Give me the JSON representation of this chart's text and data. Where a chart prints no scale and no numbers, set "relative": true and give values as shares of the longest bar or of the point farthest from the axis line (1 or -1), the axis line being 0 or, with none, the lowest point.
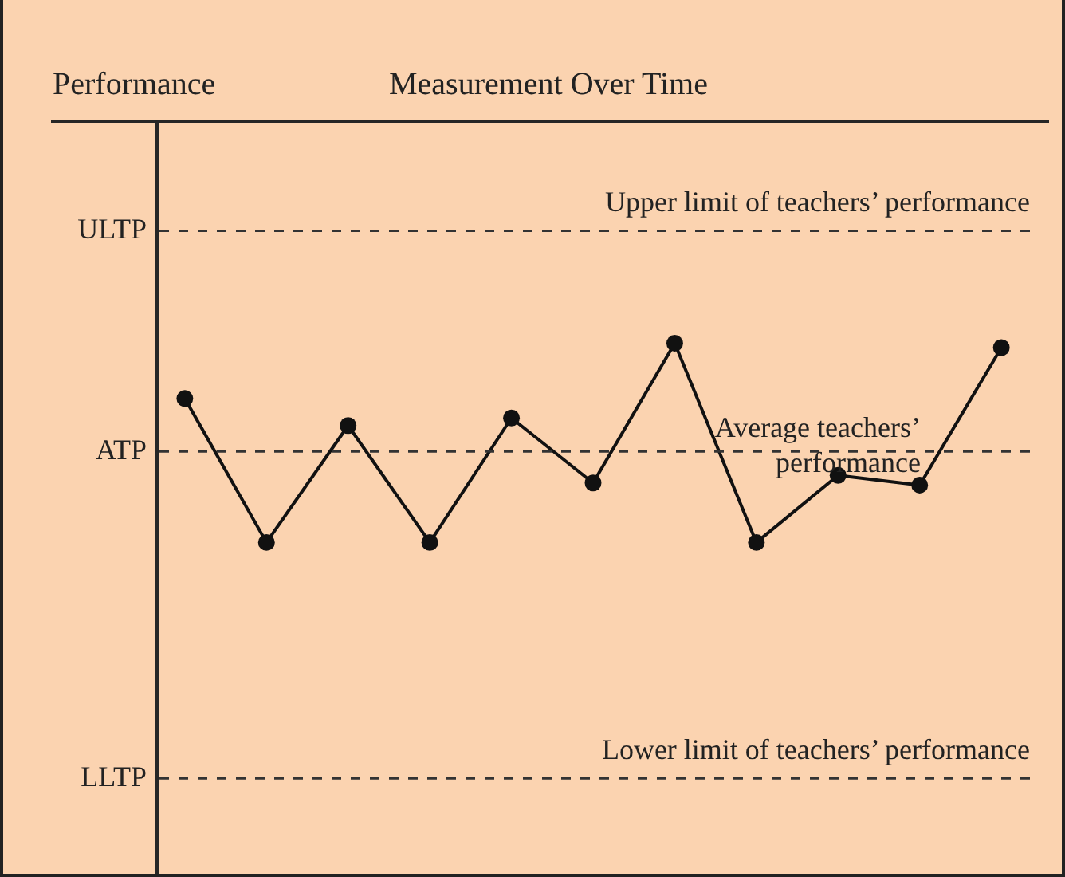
{
  "chart_data": {
    "type": "line",
    "relative": true,
    "categories": [
      null,
      null,
      null,
      null,
      null,
      null,
      null,
      null,
      null,
      null,
      null
    ],
    "series": [
      {
        "color": "#111111",
        "values": [
          0.49,
          -0.84,
          0.24,
          -0.84,
          0.31,
          -0.29,
          1,
          -0.84,
          -0.22,
          -0.31,
          0.96
        ]
      }
    ],
    "ref_lines": [
      {
        "axis": "y",
        "value": 2.04,
        "label": "Upper limit of teachers’ performance",
        "color": "#333333",
        "line_style": "dashed"
      },
      {
        "axis": "y",
        "value": 0,
        "label": "Average teachers’ performance",
        "color": "#333333",
        "line_style": "dashed"
      },
      {
        "axis": "y",
        "value": -3.02,
        "label": "Lower limit of teachers’ performance",
        "color": "#333333",
        "line_style": "dashed"
      }
    ],
    "annotations": [
      "Performance",
      "Measurement Over Time",
      "ULTP",
      "ATP",
      "LLTP"
    ],
    "marker": "circle",
    "line_style": "solid"
  }
}
